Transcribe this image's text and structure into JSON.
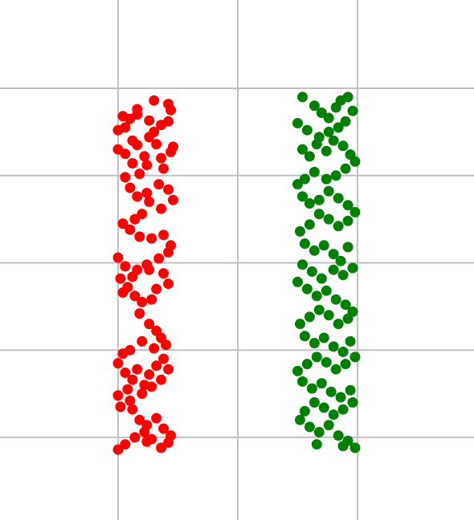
{
  "chart_data": {
    "type": "scatter",
    "title": "",
    "xlabel": "",
    "ylabel": "",
    "grid": true,
    "xlim": [
      0,
      2
    ],
    "ylim": [
      0,
      6
    ],
    "x_gridlines": [
      0.5,
      1.0,
      1.5
    ],
    "y_gridlines": [
      1,
      2,
      3,
      4,
      5
    ],
    "series": [
      {
        "color": "#ff0000",
        "points": [
          [
            0.5,
            4.52
          ],
          [
            0.53,
            4.55
          ],
          [
            0.55,
            4.65
          ],
          [
            0.58,
            4.7
          ],
          [
            0.63,
            4.63
          ],
          [
            0.65,
            4.5
          ],
          [
            0.68,
            4.58
          ],
          [
            0.71,
            4.62
          ],
          [
            0.72,
            4.75
          ],
          [
            0.71,
            4.82
          ],
          [
            0.65,
            4.86
          ],
          [
            0.58,
            4.76
          ],
          [
            0.52,
            4.68
          ],
          [
            0.5,
            4.3
          ],
          [
            0.53,
            4.25
          ],
          [
            0.56,
            4.4
          ],
          [
            0.58,
            4.35
          ],
          [
            0.61,
            4.22
          ],
          [
            0.63,
            4.44
          ],
          [
            0.66,
            4.36
          ],
          [
            0.68,
            4.2
          ],
          [
            0.72,
            4.27
          ],
          [
            0.73,
            4.33
          ],
          [
            0.69,
            4.08
          ],
          [
            0.62,
            4.12
          ],
          [
            0.59,
            4.02
          ],
          [
            0.56,
            4.14
          ],
          [
            0.53,
            3.98
          ],
          [
            0.55,
            3.86
          ],
          [
            0.58,
            3.76
          ],
          [
            0.62,
            3.8
          ],
          [
            0.67,
            3.9
          ],
          [
            0.71,
            3.84
          ],
          [
            0.73,
            3.72
          ],
          [
            0.68,
            3.62
          ],
          [
            0.63,
            3.7
          ],
          [
            0.6,
            3.56
          ],
          [
            0.57,
            3.5
          ],
          [
            0.52,
            3.45
          ],
          [
            0.55,
            3.38
          ],
          [
            0.59,
            3.3
          ],
          [
            0.64,
            3.28
          ],
          [
            0.69,
            3.32
          ],
          [
            0.72,
            3.2
          ],
          [
            0.71,
            3.12
          ],
          [
            0.67,
            3.05
          ],
          [
            0.62,
            2.98
          ],
          [
            0.58,
            2.92
          ],
          [
            0.53,
            2.96
          ],
          [
            0.5,
            3.06
          ],
          [
            0.51,
            2.82
          ],
          [
            0.54,
            2.72
          ],
          [
            0.57,
            2.62
          ],
          [
            0.6,
            2.55
          ],
          [
            0.64,
            2.58
          ],
          [
            0.66,
            2.7
          ],
          [
            0.71,
            2.76
          ],
          [
            0.69,
            2.88
          ],
          [
            0.63,
            2.92
          ],
          [
            0.56,
            2.84
          ],
          [
            0.52,
            2.66
          ],
          [
            0.59,
            2.42
          ],
          [
            0.63,
            2.3
          ],
          [
            0.66,
            2.22
          ],
          [
            0.68,
            2.14
          ],
          [
            0.7,
            2.06
          ],
          [
            0.65,
            2.02
          ],
          [
            0.6,
            2.1
          ],
          [
            0.55,
            2.0
          ],
          [
            0.52,
            1.96
          ],
          [
            0.5,
            1.85
          ],
          [
            0.53,
            1.74
          ],
          [
            0.56,
            1.66
          ],
          [
            0.58,
            1.78
          ],
          [
            0.61,
            1.6
          ],
          [
            0.63,
            1.72
          ],
          [
            0.66,
            1.82
          ],
          [
            0.69,
            1.9
          ],
          [
            0.71,
            1.78
          ],
          [
            0.68,
            1.66
          ],
          [
            0.64,
            1.58
          ],
          [
            0.6,
            1.5
          ],
          [
            0.55,
            1.42
          ],
          [
            0.51,
            1.35
          ],
          [
            0.5,
            1.48
          ],
          [
            0.54,
            1.55
          ],
          [
            0.56,
            1.32
          ],
          [
            0.59,
            1.2
          ],
          [
            0.62,
            1.14
          ],
          [
            0.66,
            1.22
          ],
          [
            0.69,
            1.1
          ],
          [
            0.72,
            1.02
          ],
          [
            0.71,
            0.94
          ],
          [
            0.68,
            0.88
          ],
          [
            0.64,
            0.98
          ],
          [
            0.61,
            1.06
          ],
          [
            0.57,
            1.0
          ],
          [
            0.53,
            0.92
          ],
          [
            0.5,
            0.86
          ],
          [
            0.62,
            0.95
          ]
        ]
      },
      {
        "color": "#008000",
        "points": [
          [
            1.27,
            4.9
          ],
          [
            1.32,
            4.8
          ],
          [
            1.35,
            4.72
          ],
          [
            1.38,
            4.66
          ],
          [
            1.41,
            4.78
          ],
          [
            1.43,
            4.86
          ],
          [
            1.46,
            4.9
          ],
          [
            1.48,
            4.74
          ],
          [
            1.45,
            4.62
          ],
          [
            1.42,
            4.55
          ],
          [
            1.38,
            4.5
          ],
          [
            1.34,
            4.44
          ],
          [
            1.29,
            4.52
          ],
          [
            1.25,
            4.6
          ],
          [
            1.27,
            4.3
          ],
          [
            1.3,
            4.22
          ],
          [
            1.33,
            4.36
          ],
          [
            1.37,
            4.28
          ],
          [
            1.4,
            4.4
          ],
          [
            1.44,
            4.34
          ],
          [
            1.47,
            4.24
          ],
          [
            1.49,
            4.16
          ],
          [
            1.45,
            4.08
          ],
          [
            1.41,
            4.0
          ],
          [
            1.37,
            3.96
          ],
          [
            1.32,
            4.04
          ],
          [
            1.28,
            3.96
          ],
          [
            1.25,
            3.9
          ],
          [
            1.27,
            3.76
          ],
          [
            1.3,
            3.68
          ],
          [
            1.34,
            3.72
          ],
          [
            1.38,
            3.82
          ],
          [
            1.42,
            3.74
          ],
          [
            1.46,
            3.66
          ],
          [
            1.49,
            3.58
          ],
          [
            1.46,
            3.48
          ],
          [
            1.42,
            3.42
          ],
          [
            1.38,
            3.5
          ],
          [
            1.34,
            3.56
          ],
          [
            1.3,
            3.44
          ],
          [
            1.26,
            3.36
          ],
          [
            1.28,
            3.22
          ],
          [
            1.32,
            3.14
          ],
          [
            1.36,
            3.2
          ],
          [
            1.4,
            3.1
          ],
          [
            1.43,
            3.02
          ],
          [
            1.46,
            3.18
          ],
          [
            1.48,
            2.94
          ],
          [
            1.44,
            2.86
          ],
          [
            1.4,
            2.92
          ],
          [
            1.35,
            2.82
          ],
          [
            1.31,
            2.9
          ],
          [
            1.27,
            2.98
          ],
          [
            1.25,
            2.78
          ],
          [
            1.29,
            2.7
          ],
          [
            1.33,
            2.62
          ],
          [
            1.37,
            2.68
          ],
          [
            1.41,
            2.58
          ],
          [
            1.45,
            2.52
          ],
          [
            1.48,
            2.44
          ],
          [
            1.46,
            2.36
          ],
          [
            1.42,
            2.3
          ],
          [
            1.38,
            2.4
          ],
          [
            1.34,
            2.46
          ],
          [
            1.3,
            2.38
          ],
          [
            1.26,
            2.3
          ],
          [
            1.28,
            2.16
          ],
          [
            1.32,
            2.08
          ],
          [
            1.36,
            2.14
          ],
          [
            1.4,
            2.04
          ],
          [
            1.44,
            1.98
          ],
          [
            1.47,
            2.1
          ],
          [
            1.49,
            1.92
          ],
          [
            1.45,
            1.84
          ],
          [
            1.41,
            1.78
          ],
          [
            1.37,
            1.86
          ],
          [
            1.33,
            1.92
          ],
          [
            1.29,
            1.84
          ],
          [
            1.25,
            1.76
          ],
          [
            1.27,
            1.64
          ],
          [
            1.31,
            1.56
          ],
          [
            1.35,
            1.62
          ],
          [
            1.39,
            1.52
          ],
          [
            1.43,
            1.46
          ],
          [
            1.47,
            1.54
          ],
          [
            1.48,
            1.4
          ],
          [
            1.44,
            1.32
          ],
          [
            1.4,
            1.26
          ],
          [
            1.36,
            1.34
          ],
          [
            1.32,
            1.4
          ],
          [
            1.28,
            1.3
          ],
          [
            1.26,
            1.2
          ],
          [
            1.3,
            1.12
          ],
          [
            1.34,
            1.06
          ],
          [
            1.38,
            1.14
          ],
          [
            1.42,
            1.02
          ],
          [
            1.46,
            0.96
          ],
          [
            1.49,
            0.88
          ],
          [
            1.44,
            0.9
          ],
          [
            1.33,
            0.92
          ]
        ]
      }
    ]
  }
}
